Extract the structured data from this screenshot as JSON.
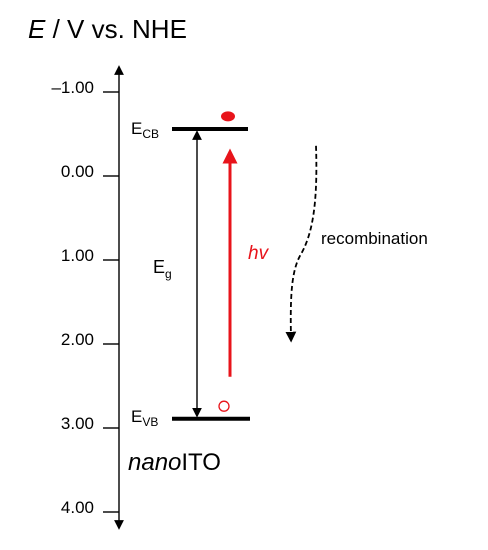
{
  "axis": {
    "title_symbol": "E",
    "title_rest": " / V vs. NHE",
    "ticks": [
      {
        "value": -1.0,
        "label": "–1.00"
      },
      {
        "value": 0.0,
        "label": "0.00"
      },
      {
        "value": 1.0,
        "label": "1.00"
      },
      {
        "value": 2.0,
        "label": "2.00"
      },
      {
        "value": 3.0,
        "label": "3.00"
      },
      {
        "value": 4.0,
        "label": "4.00"
      }
    ],
    "range": [
      -1.35,
      4.1
    ]
  },
  "levels": {
    "cb": {
      "main": "E",
      "sub": "CB",
      "value": -0.5
    },
    "vb": {
      "main": "E",
      "sub": "VB",
      "value": 2.95
    }
  },
  "bandgap": {
    "main": "E",
    "sub": "g"
  },
  "excitation": {
    "label": "hv",
    "from_value": 2.45,
    "to_value": -0.25
  },
  "electron": {
    "value": -0.65
  },
  "hole": {
    "value": 2.8
  },
  "recombination": {
    "label": "recombination",
    "from_value": -0.3,
    "to_value": 2.05
  },
  "material": {
    "italic": "nano",
    "rest": "ITO"
  },
  "colors": {
    "axis": "#000000",
    "excitation": "#e8141b"
  }
}
